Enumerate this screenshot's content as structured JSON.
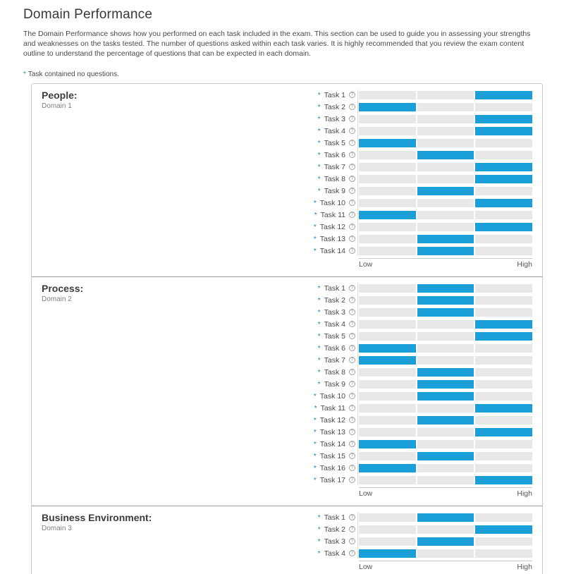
{
  "header": {
    "title": "Domain Performance",
    "description": "The Domain Performance shows how you performed on each task included in the exam. This section can be used to guide you in assessing your strengths and weaknesses on the tasks tested. The number of questions asked within each task varies. It is highly recommended that you review the exam content outline to understand the percentage of questions that can be expected in each domain."
  },
  "legend": {
    "marker": "*",
    "text": "Task contained no questions."
  },
  "axis": {
    "low": "Low",
    "high": "High"
  },
  "icons": {
    "info": "info-circle-icon",
    "info_glyph": "?"
  },
  "colors": {
    "bar_active": "#1b9fd9",
    "bar_track": "#e8e8e8",
    "asterisk": "#2e86c1",
    "panel_border": "#c9c9c9",
    "section_divider": "#9b9b9b"
  },
  "sections": [
    {
      "title": "People:",
      "subtitle": "Domain 1",
      "tasks": [
        {
          "label": "Task 1",
          "level": "high"
        },
        {
          "label": "Task 2",
          "level": "low"
        },
        {
          "label": "Task 3",
          "level": "high"
        },
        {
          "label": "Task 4",
          "level": "high"
        },
        {
          "label": "Task 5",
          "level": "low"
        },
        {
          "label": "Task 6",
          "level": "mid"
        },
        {
          "label": "Task 7",
          "level": "high"
        },
        {
          "label": "Task 8",
          "level": "high"
        },
        {
          "label": "Task 9",
          "level": "mid"
        },
        {
          "label": "Task 10",
          "level": "high"
        },
        {
          "label": "Task 11",
          "level": "low"
        },
        {
          "label": "Task 12",
          "level": "high"
        },
        {
          "label": "Task 13",
          "level": "mid"
        },
        {
          "label": "Task 14",
          "level": "mid"
        }
      ]
    },
    {
      "title": "Process:",
      "subtitle": "Domain 2",
      "tasks": [
        {
          "label": "Task 1",
          "level": "mid"
        },
        {
          "label": "Task 2",
          "level": "mid"
        },
        {
          "label": "Task 3",
          "level": "mid"
        },
        {
          "label": "Task 4",
          "level": "high"
        },
        {
          "label": "Task 5",
          "level": "high"
        },
        {
          "label": "Task 6",
          "level": "low"
        },
        {
          "label": "Task 7",
          "level": "low"
        },
        {
          "label": "Task 8",
          "level": "mid"
        },
        {
          "label": "Task 9",
          "level": "mid"
        },
        {
          "label": "Task 10",
          "level": "mid"
        },
        {
          "label": "Task 11",
          "level": "high"
        },
        {
          "label": "Task 12",
          "level": "mid"
        },
        {
          "label": "Task 13",
          "level": "high"
        },
        {
          "label": "Task 14",
          "level": "low"
        },
        {
          "label": "Task 15",
          "level": "mid"
        },
        {
          "label": "Task 16",
          "level": "low"
        },
        {
          "label": "Task 17",
          "level": "high"
        }
      ]
    },
    {
      "title": "Business Environment:",
      "subtitle": "Domain 3",
      "tasks": [
        {
          "label": "Task 1",
          "level": "mid"
        },
        {
          "label": "Task 2",
          "level": "high"
        },
        {
          "label": "Task 3",
          "level": "mid"
        },
        {
          "label": "Task 4",
          "level": "low"
        }
      ]
    }
  ],
  "chart_data": [
    {
      "type": "bar",
      "title": "People: Domain 1",
      "categories": [
        "Task 1",
        "Task 2",
        "Task 3",
        "Task 4",
        "Task 5",
        "Task 6",
        "Task 7",
        "Task 8",
        "Task 9",
        "Task 10",
        "Task 11",
        "Task 12",
        "Task 13",
        "Task 14"
      ],
      "values": [
        "high",
        "low",
        "high",
        "high",
        "low",
        "mid",
        "high",
        "high",
        "mid",
        "high",
        "low",
        "high",
        "mid",
        "mid"
      ],
      "values_numeric": [
        3,
        1,
        3,
        3,
        1,
        2,
        3,
        3,
        2,
        3,
        1,
        3,
        2,
        2
      ],
      "value_scale": {
        "low": 1,
        "mid": 2,
        "high": 3
      },
      "xlabel": "",
      "ylabel": "",
      "axis_labels": [
        "Low",
        "High"
      ],
      "orientation": "horizontal",
      "legend": "none",
      "grid": false
    },
    {
      "type": "bar",
      "title": "Process: Domain 2",
      "categories": [
        "Task 1",
        "Task 2",
        "Task 3",
        "Task 4",
        "Task 5",
        "Task 6",
        "Task 7",
        "Task 8",
        "Task 9",
        "Task 10",
        "Task 11",
        "Task 12",
        "Task 13",
        "Task 14",
        "Task 15",
        "Task 16",
        "Task 17"
      ],
      "values": [
        "mid",
        "mid",
        "mid",
        "high",
        "high",
        "low",
        "low",
        "mid",
        "mid",
        "mid",
        "high",
        "mid",
        "high",
        "low",
        "mid",
        "low",
        "high"
      ],
      "values_numeric": [
        2,
        2,
        2,
        3,
        3,
        1,
        1,
        2,
        2,
        2,
        3,
        2,
        3,
        1,
        2,
        1,
        3
      ],
      "value_scale": {
        "low": 1,
        "mid": 2,
        "high": 3
      },
      "xlabel": "",
      "ylabel": "",
      "axis_labels": [
        "Low",
        "High"
      ],
      "orientation": "horizontal",
      "legend": "none",
      "grid": false
    },
    {
      "type": "bar",
      "title": "Business Environment: Domain 3",
      "categories": [
        "Task 1",
        "Task 2",
        "Task 3",
        "Task 4"
      ],
      "values": [
        "mid",
        "high",
        "mid",
        "low"
      ],
      "values_numeric": [
        2,
        3,
        2,
        1
      ],
      "value_scale": {
        "low": 1,
        "mid": 2,
        "high": 3
      },
      "xlabel": "",
      "ylabel": "",
      "axis_labels": [
        "Low",
        "High"
      ],
      "orientation": "horizontal",
      "legend": "none",
      "grid": false
    }
  ]
}
